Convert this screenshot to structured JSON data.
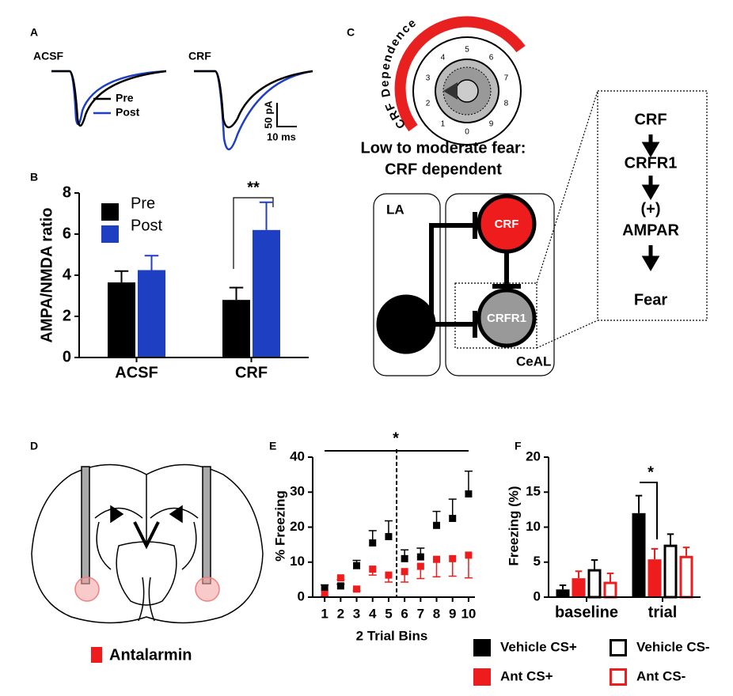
{
  "panels": {
    "a": {
      "label": "A",
      "conditions": [
        "ACSF",
        "CRF"
      ],
      "legend": [
        "Pre",
        "Post"
      ],
      "scale_y": "50 pA",
      "scale_x": "10 ms"
    },
    "c": {
      "label": "C",
      "dial_title": "CRF Dependence",
      "dial_numbers": [
        "0",
        "1",
        "2",
        "3",
        "4",
        "5",
        "6",
        "7",
        "8",
        "9"
      ],
      "caption": [
        "Low to moderate fear:",
        "CRF dependent"
      ],
      "regions": [
        "LA",
        "CeAL"
      ],
      "cells": [
        "CRF",
        "CRFR1"
      ],
      "pathway": [
        "CRF",
        "CRFR1",
        "(+)",
        "AMPAR",
        "Fear"
      ]
    },
    "b": {
      "label": "B"
    },
    "d": {
      "label": "D",
      "legend": "Antalarmin"
    },
    "e": {
      "label": "E"
    },
    "f": {
      "label": "F"
    }
  },
  "chart_data": [
    {
      "type": "bar",
      "ylabel": "AMPA/NMDA ratio",
      "categories": [
        "ACSF",
        "CRF"
      ],
      "ylim": [
        0,
        8
      ],
      "yticks": [
        0,
        2,
        4,
        6,
        8
      ],
      "annotation": "**",
      "series": [
        {
          "name": "Pre",
          "color": "#000000",
          "fill": true,
          "values": [
            3.65,
            2.8
          ],
          "errors": [
            0.55,
            0.6
          ]
        },
        {
          "name": "Post",
          "color": "#1f3fc2",
          "fill": true,
          "values": [
            4.25,
            6.2
          ],
          "errors": [
            0.7,
            1.35
          ]
        }
      ]
    },
    {
      "type": "scatter",
      "xlabel": "2 Trial Bins",
      "ylabel": "% Freezing",
      "annotation": "*",
      "divider_x": 5.5,
      "xlim": [
        0.25,
        10.4
      ],
      "xticks": [
        1,
        2,
        3,
        4,
        5,
        6,
        7,
        8,
        9,
        10
      ],
      "ylim": [
        0,
        40
      ],
      "yticks": [
        0,
        10,
        20,
        30,
        40
      ],
      "series": [
        {
          "color": "#000000",
          "error_direction": "up",
          "x": [
            1,
            2,
            3,
            4,
            5,
            6,
            7,
            8,
            9,
            10
          ],
          "values": [
            2.5,
            3.2,
            9,
            15.5,
            17.3,
            11,
            11.5,
            20.5,
            22.5,
            29.5
          ],
          "errors": [
            1,
            0.5,
            1.5,
            3.5,
            4.5,
            2.5,
            2.5,
            4,
            5.5,
            6.5
          ]
        },
        {
          "color": "#ee1c1c",
          "error_direction": "down",
          "x": [
            1,
            2,
            3,
            4,
            5,
            6,
            7,
            8,
            9,
            10
          ],
          "values": [
            0.8,
            5.5,
            2.3,
            8,
            6.3,
            7.3,
            8.8,
            10.8,
            11,
            12
          ],
          "errors": [
            0.5,
            0.5,
            0.5,
            1.7,
            2,
            3,
            3.5,
            5,
            5,
            6.5
          ]
        }
      ]
    },
    {
      "type": "bar",
      "ylabel": "Freezing (%)",
      "categories": [
        "baseline",
        "trial"
      ],
      "ylim": [
        0,
        20
      ],
      "yticks": [
        0,
        5,
        10,
        15,
        20
      ],
      "annotation": "*",
      "series": [
        {
          "name": "Vehicle CS+",
          "color": "#000000",
          "fill": true,
          "values": [
            1.1,
            12
          ],
          "errors": [
            0.6,
            2.5
          ]
        },
        {
          "name": "Ant CS+",
          "color": "#ee1c1c",
          "fill": true,
          "values": [
            2.7,
            5.4
          ],
          "errors": [
            1,
            1.5
          ]
        },
        {
          "name": "Vehicle CS-",
          "color": "#000000",
          "fill": false,
          "values": [
            4,
            7.5
          ],
          "errors": [
            1.3,
            1.5
          ]
        },
        {
          "name": "Ant CS-",
          "color": "#ee1c1c",
          "fill": false,
          "values": [
            2.2,
            5.9
          ],
          "errors": [
            1.2,
            1.2
          ]
        }
      ]
    }
  ]
}
